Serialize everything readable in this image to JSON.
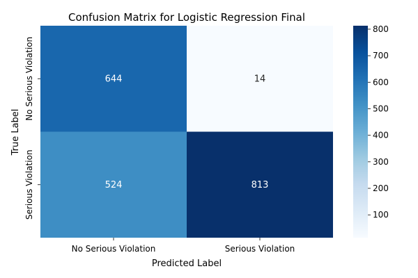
{
  "chart_data": {
    "type": "heatmap",
    "title": "Confusion Matrix for Logistic Regression Final",
    "xlabel": "Predicted Label",
    "ylabel": "True Label",
    "x_categories": [
      "No Serious Violation",
      "Serious Violation"
    ],
    "y_categories": [
      "No Serious Violation",
      "Serious Violation"
    ],
    "values": [
      [
        644,
        14
      ],
      [
        524,
        813
      ]
    ],
    "colorbar": {
      "min": 14,
      "max": 813,
      "ticks": [
        100,
        200,
        300,
        400,
        500,
        600,
        700,
        800
      ],
      "colormap": "Blues"
    },
    "colors": {
      "low": "#f7fbff",
      "high": "#08306b"
    }
  }
}
